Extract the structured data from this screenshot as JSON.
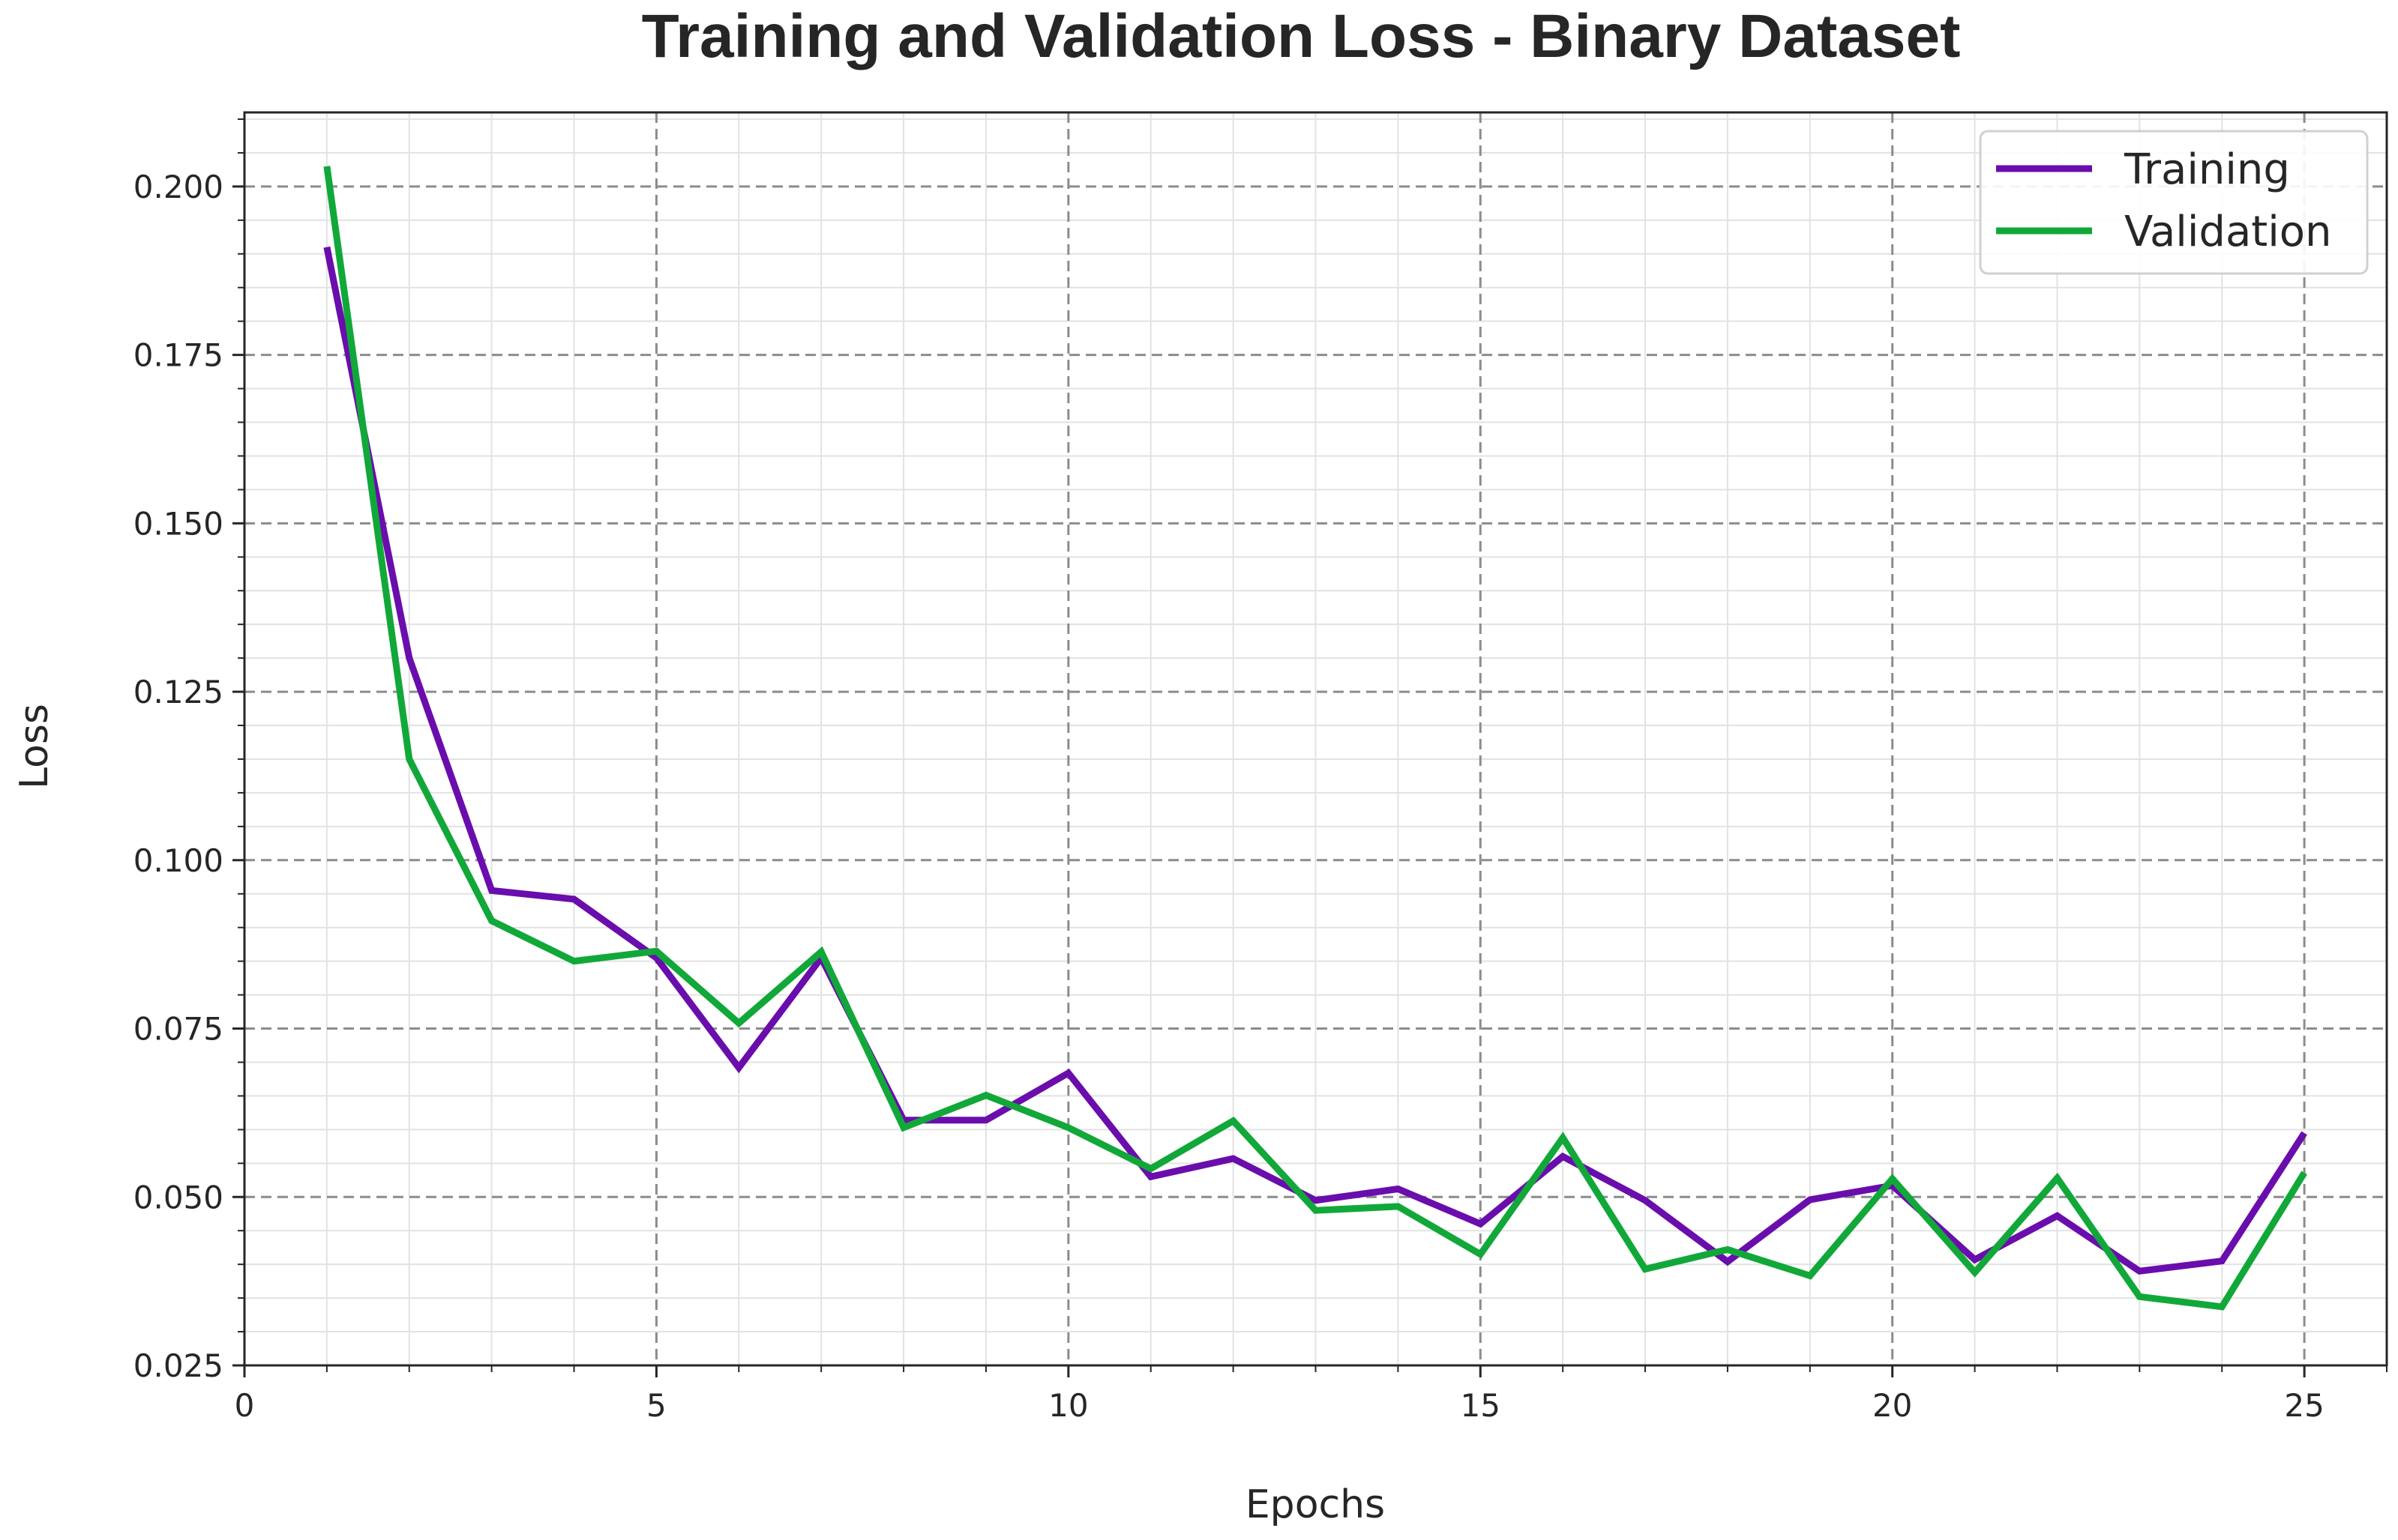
{
  "chart_data": {
    "type": "line",
    "title": "Training and Validation Loss - Binary Dataset",
    "xlabel": "Epochs",
    "ylabel": "Loss",
    "xlim": [
      0,
      26
    ],
    "ylim": [
      0.025,
      0.211
    ],
    "xticks": [
      0,
      5,
      10,
      15,
      20,
      25
    ],
    "xtick_labels": [
      "0",
      "5",
      "10",
      "15",
      "20",
      "25"
    ],
    "yticks": [
      0.025,
      0.05,
      0.075,
      0.1,
      0.125,
      0.15,
      0.175,
      0.2
    ],
    "ytick_labels": [
      "0.025",
      "0.050",
      "0.075",
      "0.100",
      "0.125",
      "0.150",
      "0.175",
      "0.200"
    ],
    "x_minor_step": 1,
    "y_minor_step": 0.005,
    "grid": true,
    "legend_position": "top-right",
    "x": [
      1,
      2,
      3,
      4,
      5,
      6,
      7,
      8,
      9,
      10,
      11,
      12,
      13,
      14,
      15,
      16,
      17,
      18,
      19,
      20,
      21,
      22,
      23,
      24,
      25
    ],
    "series": [
      {
        "name": "Training",
        "color": "#6a0dad",
        "values": [
          0.191,
          0.13,
          0.0955,
          0.0942,
          0.0855,
          0.0692,
          0.0855,
          0.0614,
          0.0614,
          0.0684,
          0.053,
          0.0557,
          0.0495,
          0.0512,
          0.046,
          0.056,
          0.0495,
          0.0404,
          0.0496,
          0.0517,
          0.0407,
          0.0472,
          0.039,
          0.0405,
          0.0595
        ]
      },
      {
        "name": "Validation",
        "color": "#11a839",
        "values": [
          0.203,
          0.115,
          0.091,
          0.085,
          0.0865,
          0.0758,
          0.0864,
          0.0603,
          0.0651,
          0.0603,
          0.0542,
          0.0613,
          0.048,
          0.0486,
          0.0415,
          0.0588,
          0.0393,
          0.0422,
          0.0383,
          0.0527,
          0.0388,
          0.0528,
          0.0352,
          0.0337,
          0.0536
        ]
      }
    ]
  }
}
